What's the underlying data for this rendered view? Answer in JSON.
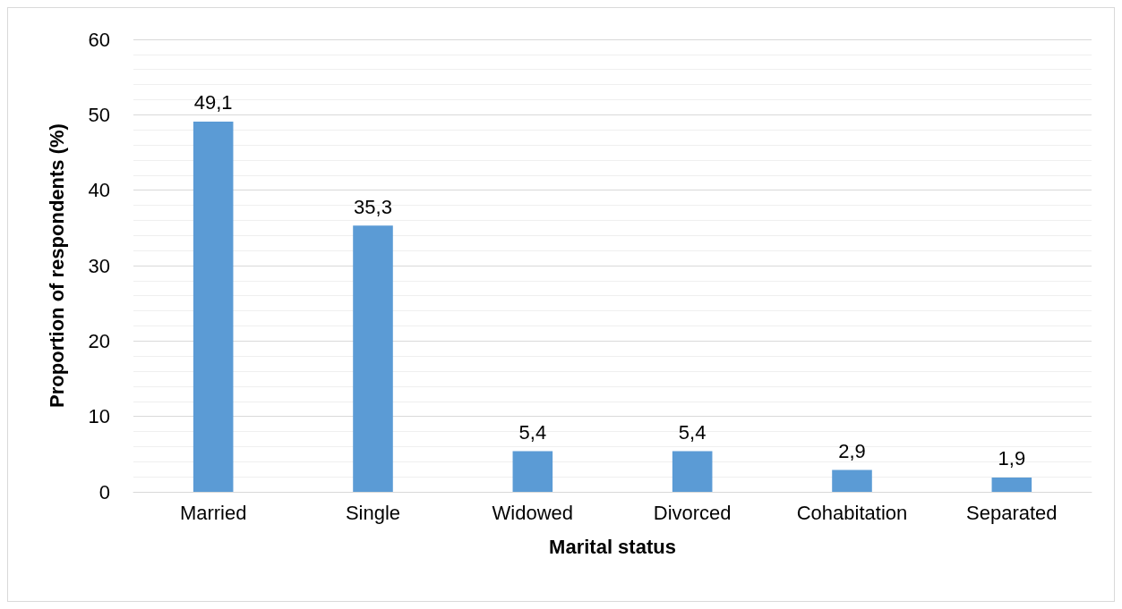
{
  "chart_data": {
    "type": "bar",
    "xlabel": "Marital status",
    "ylabel": "Proportion of respondents (%)",
    "categories": [
      "Married",
      "Single",
      "Widowed",
      "Divorced",
      "Cohabitation",
      "Separated"
    ],
    "values": [
      49.1,
      35.3,
      5.4,
      5.4,
      2.9,
      1.9
    ],
    "value_labels": [
      "49,1",
      "35,3",
      "5,4",
      "5,4",
      "2,9",
      "1,9"
    ],
    "color": "#5b9bd5",
    "ylim": [
      0,
      60
    ],
    "yticks": [
      0,
      10,
      20,
      30,
      40,
      50,
      60
    ],
    "grid": "y"
  }
}
